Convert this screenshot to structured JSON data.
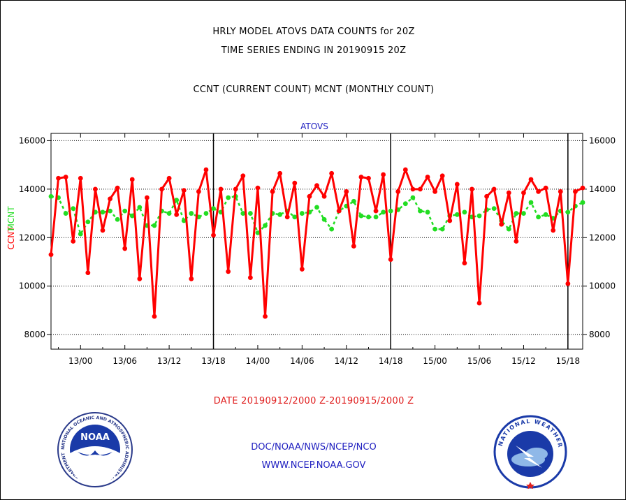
{
  "header": {
    "line1": "HRLY MODEL ATOVS DATA COUNTS for 20Z",
    "line2": "TIME SERIES ENDING IN 20190915 20Z",
    "line3": "CCNT (CURRENT COUNT) MCNT (MONTHLY COUNT)"
  },
  "footer": {
    "date_range": "DATE 20190912/2000 Z-20190915/2000 Z",
    "org": "DOC/NOAA/NWS/NCEP/NCO",
    "url": "WWW.NCEP.NOAA.GOV"
  },
  "logos": {
    "noaa_text": "NOAA",
    "noaa_ring": "NATIONAL OCEANIC AND ATMOSPHERIC ADMINISTRATION • U.S. DEPARTMENT OF COMMERCE •",
    "nws_ring": "NATIONAL WEATHER SERVICE"
  },
  "chart_data": {
    "type": "line",
    "title": "ATOVS",
    "ylabel_left": "CCNT",
    "ylabel_right": "MCNT",
    "ylim": [
      7400,
      16300
    ],
    "yticks": [
      8000,
      10000,
      12000,
      14000,
      16000
    ],
    "ytick_labels": [
      "8000",
      "10000",
      "12000",
      "14000",
      "16000"
    ],
    "xlim": [
      0,
      72
    ],
    "xticks": [
      4,
      10,
      16,
      22,
      28,
      34,
      40,
      46,
      52,
      58,
      64,
      70
    ],
    "xtick_labels": [
      "13/00",
      "13/06",
      "13/12",
      "13/18",
      "14/00",
      "14/06",
      "14/12",
      "14/18",
      "15/00",
      "15/06",
      "15/12",
      "15/18"
    ],
    "day_dividers": [
      22,
      46,
      70
    ],
    "grid": true,
    "colors": {
      "ccnt": "#ff0000",
      "mcnt": "#22dd22",
      "title": "#2020c0"
    },
    "series": [
      {
        "name": "CCNT",
        "values": [
          11300,
          14450,
          14500,
          11850,
          14450,
          10550,
          14000,
          12300,
          13600,
          14050,
          11550,
          14400,
          10300,
          13650,
          8750,
          14000,
          14450,
          12950,
          13950,
          10300,
          13900,
          14800,
          12100,
          14000,
          10600,
          14000,
          14550,
          10350,
          14050,
          8750,
          13900,
          14650,
          12850,
          14250,
          10700,
          13700,
          14150,
          13700,
          14650,
          13100,
          13900,
          11650,
          14500,
          14450,
          13100,
          14600,
          11100,
          13900,
          14800,
          14000,
          14000,
          14500,
          13900,
          14550,
          12700,
          14200,
          10950,
          14000,
          9300,
          13700,
          14000,
          12550,
          13850,
          11850,
          13850,
          14400,
          13900,
          14050,
          12300,
          13900,
          10100,
          13900,
          14050
        ]
      },
      {
        "name": "MCNT",
        "values": [
          13700,
          13650,
          13000,
          13200,
          12150,
          12650,
          13050,
          13050,
          13100,
          12750,
          13100,
          12900,
          13250,
          12500,
          12500,
          13100,
          13000,
          13550,
          12700,
          13000,
          12850,
          13000,
          13200,
          13050,
          13650,
          13700,
          13000,
          13000,
          12200,
          12500,
          13000,
          12950,
          13100,
          12850,
          13000,
          13050,
          13250,
          12750,
          12350,
          13100,
          13300,
          13500,
          12900,
          12850,
          12850,
          13050,
          13100,
          13150,
          13400,
          13650,
          13100,
          13050,
          12350,
          12350,
          12900,
          12950,
          13050,
          12850,
          12900,
          13150,
          13200,
          12700,
          12350,
          13000,
          13000,
          13450,
          12850,
          12950,
          12800,
          13100,
          13050,
          13300,
          13450
        ]
      }
    ]
  }
}
